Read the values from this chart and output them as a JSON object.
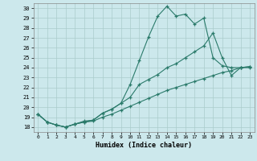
{
  "xlabel": "Humidex (Indice chaleur)",
  "xlim": [
    -0.5,
    23.5
  ],
  "ylim": [
    17.5,
    30.5
  ],
  "yticks": [
    18,
    19,
    20,
    21,
    22,
    23,
    24,
    25,
    26,
    27,
    28,
    29,
    30
  ],
  "xticks": [
    0,
    1,
    2,
    3,
    4,
    5,
    6,
    7,
    8,
    9,
    10,
    11,
    12,
    13,
    14,
    15,
    16,
    17,
    18,
    19,
    20,
    21,
    22,
    23
  ],
  "background_color": "#cce8ec",
  "grid_color": "#aacccc",
  "line_color": "#2a7a6a",
  "line1_x": [
    0,
    1,
    2,
    3,
    4,
    5,
    6,
    7,
    8,
    9,
    10,
    11,
    12,
    13,
    14,
    15,
    16,
    17,
    18,
    19,
    20,
    21,
    22,
    23
  ],
  "line1_y": [
    19.3,
    18.5,
    18.2,
    18.0,
    18.3,
    18.6,
    18.7,
    19.4,
    19.8,
    20.4,
    22.3,
    24.7,
    27.1,
    29.2,
    30.2,
    29.2,
    29.4,
    28.4,
    29.0,
    25.0,
    24.2,
    24.0,
    24.0,
    24.0
  ],
  "line2_x": [
    0,
    1,
    2,
    3,
    4,
    5,
    6,
    7,
    8,
    9,
    10,
    11,
    12,
    13,
    14,
    15,
    16,
    17,
    18,
    19,
    20,
    21,
    22,
    23
  ],
  "line2_y": [
    19.3,
    18.5,
    18.2,
    18.0,
    18.3,
    18.5,
    18.7,
    19.4,
    19.8,
    20.4,
    21.0,
    22.3,
    22.8,
    23.3,
    24.0,
    24.4,
    25.0,
    25.6,
    26.2,
    27.5,
    25.0,
    23.2,
    24.0,
    24.1
  ],
  "line3_x": [
    0,
    1,
    2,
    3,
    4,
    5,
    6,
    7,
    8,
    9,
    10,
    11,
    12,
    13,
    14,
    15,
    16,
    17,
    18,
    19,
    20,
    21,
    22,
    23
  ],
  "line3_y": [
    19.3,
    18.5,
    18.2,
    18.0,
    18.3,
    18.5,
    18.6,
    19.0,
    19.3,
    19.7,
    20.1,
    20.5,
    20.9,
    21.3,
    21.7,
    22.0,
    22.3,
    22.6,
    22.9,
    23.2,
    23.5,
    23.7,
    24.0,
    24.1
  ]
}
